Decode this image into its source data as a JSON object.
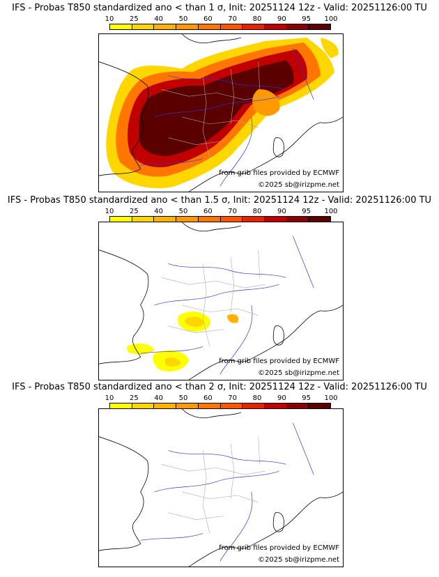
{
  "panels": [
    {
      "title": "IFS - Probas T850  standardized ano < than 1 σ, Init: 20251124 12z - Valid: 20251126:00 TU"
    },
    {
      "title": "IFS - Probas T850  standardized ano < than 1.5 σ, Init: 20251124 12z - Valid: 20251126:00 TU"
    },
    {
      "title": "IFS - Probas T850  standardized ano < than 2 σ, Init: 20251124 12z - Valid: 20251126:00 TU"
    }
  ],
  "colorbar": {
    "ticks": [
      "10",
      "25",
      "40",
      "50",
      "60",
      "70",
      "80",
      "90",
      "95",
      "100"
    ],
    "colors": [
      "#ffff00",
      "#ffd700",
      "#ffb300",
      "#ff9900",
      "#ff7700",
      "#ff5500",
      "#e62200",
      "#c00000",
      "#8b0000",
      "#5a0000"
    ]
  },
  "credits": {
    "provider": "from grib files provided by ECMWF",
    "copyright": "©2025 sb@irizpme.net"
  },
  "map_colors": {
    "coast": "#000000",
    "rivers": "#3333cc",
    "borders": "#aaaaaa"
  }
}
